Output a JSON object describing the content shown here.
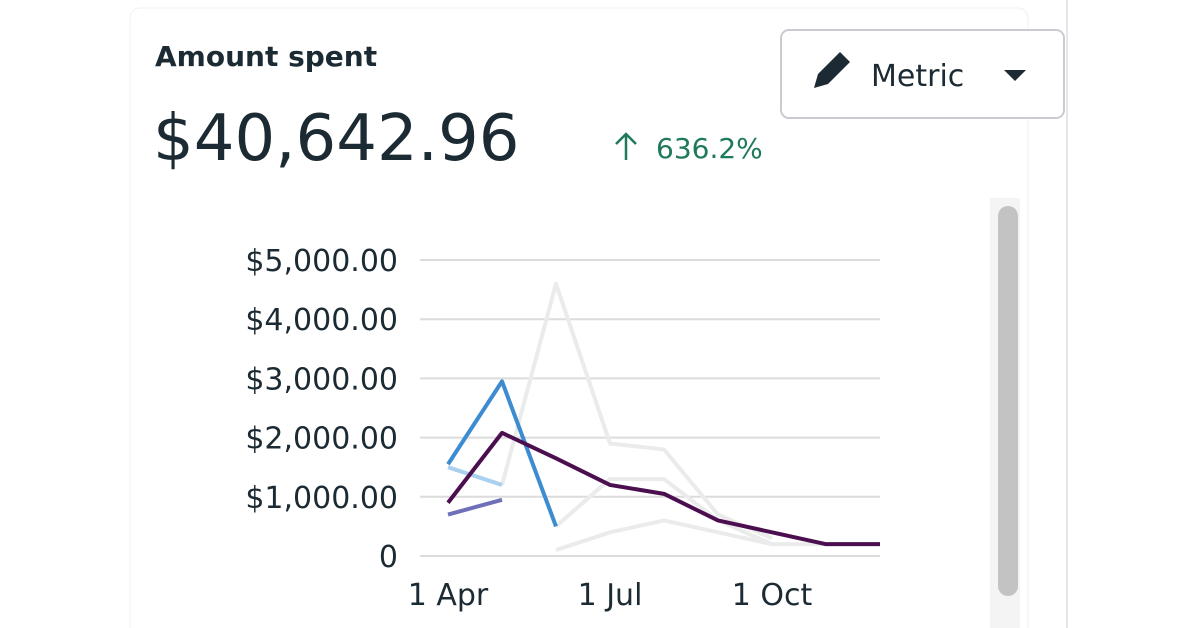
{
  "header": {
    "title": "Amount spent",
    "value": "$40,642.96",
    "change": "636.2%",
    "button": "Metric"
  },
  "chart_data": {
    "type": "line",
    "categories": [
      "1 Apr",
      null,
      null,
      "1 Jul",
      null,
      null,
      "1 Oct",
      null,
      null
    ],
    "series": [
      {
        "color": "#ebebeb",
        "values": [
          null,
          1200,
          4600,
          1900,
          1800,
          700,
          300,
          null,
          null
        ]
      },
      {
        "color": "#ebebeb",
        "values": [
          null,
          null,
          500,
          1300,
          1300,
          600,
          200,
          null,
          null
        ]
      },
      {
        "color": "#ebebeb",
        "values": [
          null,
          null,
          100,
          400,
          600,
          400,
          200,
          200,
          200
        ]
      },
      {
        "color": "#a9d0ee",
        "values": [
          1500,
          1200,
          null,
          null,
          null,
          null,
          null,
          null,
          null
        ]
      },
      {
        "color": "#6f70b8",
        "values": [
          700,
          950,
          null,
          null,
          null,
          null,
          null,
          null,
          null
        ]
      },
      {
        "color": "#3d8bd1",
        "values": [
          1550,
          2950,
          500,
          null,
          null,
          null,
          null,
          null,
          null
        ]
      },
      {
        "color": "#4b0f50",
        "values": [
          900,
          2080,
          1650,
          1200,
          1050,
          600,
          400,
          200,
          200
        ]
      }
    ],
    "ylim": [
      0,
      5000
    ],
    "yticks": [
      0,
      {
        "value": 1000,
        "label": "$1,000.00"
      },
      {
        "value": 2000,
        "label": "$2,000.00"
      },
      {
        "value": 3000,
        "label": "$3,000.00"
      },
      {
        "value": 4000,
        "label": "$4,000.00"
      },
      {
        "value": 5000,
        "label": "$5,000.00"
      }
    ],
    "grid": true
  }
}
